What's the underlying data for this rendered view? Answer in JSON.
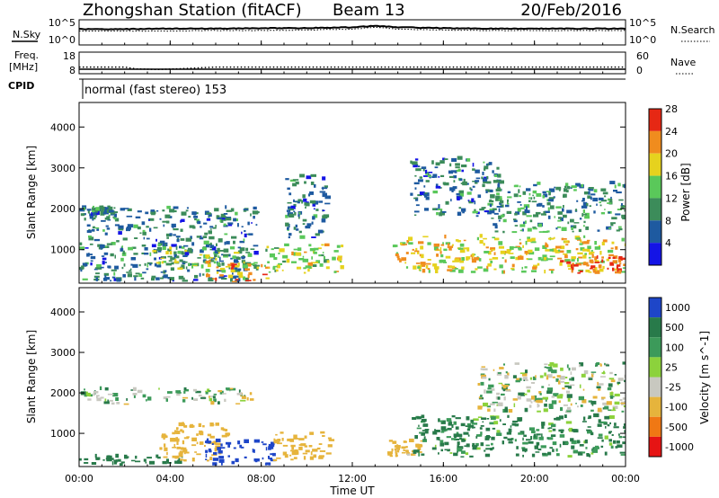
{
  "header": {
    "station": "Zhongshan Station (fitACF)",
    "beam": "Beam 13",
    "date": "20/Feb/2016"
  },
  "labels": {
    "nsky": "N.Sky",
    "nsearch": "N.Search",
    "freq_line1": "Freq.",
    "freq_line2": "[MHz]",
    "nave": "Nave",
    "cpid": "CPID",
    "mode": "normal (fast stereo) 153"
  },
  "noise_panel": {
    "left_ticks": [
      "10^5",
      "10^0"
    ],
    "right_ticks": [
      "10^5",
      "10^0"
    ]
  },
  "freq_panel": {
    "left_ticks": [
      "18",
      "8"
    ],
    "right_ticks": [
      "60",
      "0"
    ]
  },
  "axis": {
    "x_ticks": [
      "00:00",
      "04:00",
      "08:00",
      "12:00",
      "16:00",
      "20:00",
      "00:00"
    ],
    "x_label": "Time UT",
    "y_label": "Slant Range [km]",
    "y_ticks": [
      "1000",
      "2000",
      "3000",
      "4000"
    ]
  },
  "power_scale": {
    "title": "Power [dB]",
    "ticks": [
      "4",
      "8",
      "12",
      "16",
      "20",
      "24",
      "28"
    ],
    "colors": [
      "#1414e6",
      "#1e5aa0",
      "#3c8c5a",
      "#5ac85a",
      "#e6d21e",
      "#f08c1e",
      "#e62814"
    ]
  },
  "velocity_scale": {
    "title": "Velocity [m s^-1]",
    "ticks": [
      "1000",
      "500",
      "100",
      "25",
      "-25",
      "-100",
      "-500",
      "-1000"
    ],
    "colors": [
      "#1e46c8",
      "#287a4a",
      "#3c9a5a",
      "#8cd23c",
      "#c8c8c0",
      "#e6b43c",
      "#f07814",
      "#e61414"
    ]
  },
  "chart_data": [
    {
      "type": "heatmap",
      "title": "Power [dB]",
      "xlabel": "Time UT",
      "ylabel": "Slant Range [km]",
      "xlim": [
        "00:00",
        "24:00"
      ],
      "ylim": [
        180,
        4600
      ],
      "colorbar_range": [
        0,
        30
      ],
      "regions": [
        {
          "t_start": 0,
          "t_end": 7.8,
          "range_low": 200,
          "range_high": 2000,
          "db": 8
        },
        {
          "t_start": 0,
          "t_end": 1.4,
          "range_low": 1800,
          "range_high": 2000,
          "db": 8
        },
        {
          "t_start": 3.2,
          "t_end": 7.2,
          "range_low": 500,
          "range_high": 1000,
          "db": 14
        },
        {
          "t_start": 5.5,
          "t_end": 8.2,
          "range_low": 200,
          "range_high": 700,
          "db": 20
        },
        {
          "t_start": 8.0,
          "t_end": 11.5,
          "range_low": 400,
          "range_high": 1100,
          "db": 16
        },
        {
          "t_start": 9.0,
          "t_end": 10.8,
          "range_low": 1200,
          "range_high": 2800,
          "db": 8
        },
        {
          "t_start": 13.7,
          "t_end": 24,
          "range_low": 400,
          "range_high": 1300,
          "db": 18
        },
        {
          "t_start": 14.5,
          "t_end": 18.5,
          "range_low": 1800,
          "range_high": 3200,
          "db": 8
        },
        {
          "t_start": 18.0,
          "t_end": 24,
          "range_low": 1400,
          "range_high": 2600,
          "db": 10
        },
        {
          "t_start": 21.0,
          "t_end": 23.8,
          "range_low": 400,
          "range_high": 800,
          "db": 26
        }
      ]
    },
    {
      "type": "heatmap",
      "title": "Velocity [m s^-1]",
      "xlabel": "Time UT",
      "ylabel": "Slant Range [km]",
      "xlim": [
        "00:00",
        "24:00"
      ],
      "ylim": [
        180,
        4600
      ],
      "colorbar_range": [
        -1000,
        1000
      ],
      "regions": [
        {
          "t_start": 0,
          "t_end": 7.5,
          "range_low": 1700,
          "range_high": 2100,
          "v": 0
        },
        {
          "t_start": 0,
          "t_end": 4.5,
          "range_low": 200,
          "range_high": 400,
          "v": 300
        },
        {
          "t_start": 3.5,
          "t_end": 6.5,
          "range_low": 300,
          "range_high": 1200,
          "v": -300
        },
        {
          "t_start": 5.5,
          "t_end": 8.5,
          "range_low": 200,
          "range_high": 800,
          "v": 700
        },
        {
          "t_start": 8.5,
          "t_end": 11.0,
          "range_low": 300,
          "range_high": 1000,
          "v": -300
        },
        {
          "t_start": 13.5,
          "t_end": 15.0,
          "range_low": 400,
          "range_high": 800,
          "v": -200
        },
        {
          "t_start": 14.5,
          "t_end": 24,
          "range_low": 400,
          "range_high": 1400,
          "v": 150
        },
        {
          "t_start": 17.5,
          "t_end": 24,
          "range_low": 1500,
          "range_high": 2700,
          "v": 0
        }
      ]
    },
    {
      "type": "line",
      "title": "N.Sky / N.Search",
      "x_hours": [
        0,
        2,
        4,
        6,
        8,
        10,
        12,
        13,
        14,
        16,
        18,
        20,
        22,
        24
      ],
      "series": [
        {
          "name": "N.Sky",
          "values": [
            3.2,
            3.2,
            3.3,
            3.3,
            3.4,
            3.4,
            3.6,
            3.9,
            3.6,
            3.4,
            3.3,
            3.3,
            3.3,
            3.3
          ]
        },
        {
          "name": "N.Search",
          "values": [
            2.8,
            2.8,
            2.8,
            2.9,
            2.9,
            3.0,
            3.2,
            3.6,
            3.2,
            3.0,
            2.9,
            2.9,
            2.9,
            2.9
          ]
        }
      ]
    },
    {
      "type": "line",
      "title": "Freq. / Nave",
      "x_hours": [
        0,
        2,
        2.5,
        3.5,
        4.5,
        6,
        12,
        18,
        24
      ],
      "series": [
        {
          "name": "Freq.",
          "values": [
            10.5,
            10.5,
            10.5,
            10.5,
            10.5,
            10.5,
            10.5,
            10.5,
            10.5
          ]
        },
        {
          "name": "Nave",
          "values": [
            24,
            24,
            16,
            14,
            17,
            24,
            24,
            24,
            24
          ]
        }
      ]
    }
  ]
}
